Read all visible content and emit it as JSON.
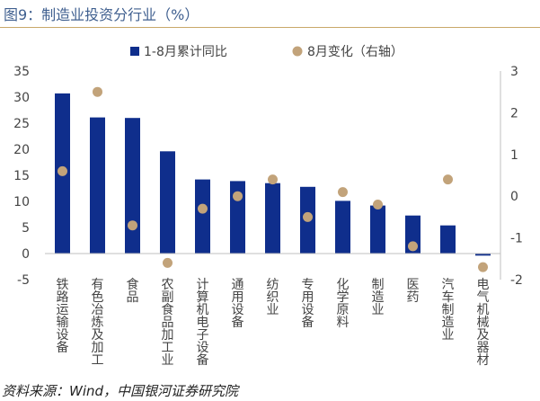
{
  "figure": {
    "title": "图9：制造业投资分行业（%）",
    "source": "资料来源：Wind，中国银河证券研究院"
  },
  "colors": {
    "bar": "#0f2e8c",
    "dot": "#c2a37a",
    "axis": "#bfbfbf",
    "text": "#444444"
  },
  "chart_data": {
    "type": "bar",
    "categories": [
      "铁路运输设备",
      "有色冶炼及加工",
      "食品",
      "农副食品加工业",
      "计算机电子设备",
      "通用设备",
      "纺织业",
      "专用设备",
      "化学原料",
      "制造业",
      "医药",
      "汽车制造业",
      "电气机械及器材"
    ],
    "series": [
      {
        "name": "1-8月累计同比",
        "type": "bar",
        "axis": "left",
        "values": [
          30.7,
          26.1,
          26.0,
          19.6,
          14.2,
          13.9,
          13.5,
          12.8,
          10.1,
          9.2,
          7.3,
          5.4,
          -0.4
        ]
      },
      {
        "name": "8月变化（右轴）",
        "type": "scatter",
        "axis": "right",
        "values": [
          0.6,
          2.5,
          -0.7,
          -1.6,
          -0.3,
          0.0,
          0.4,
          -0.5,
          0.1,
          -0.2,
          -1.2,
          0.4,
          -1.7
        ]
      }
    ],
    "yleft": {
      "min": -5,
      "max": 35,
      "ticks": [
        -5,
        0,
        5,
        10,
        15,
        20,
        25,
        30,
        35
      ]
    },
    "yright": {
      "min": -2,
      "max": 3,
      "ticks": [
        -2,
        -1,
        0,
        1,
        2,
        3
      ]
    },
    "legend": "top",
    "grid": false
  }
}
